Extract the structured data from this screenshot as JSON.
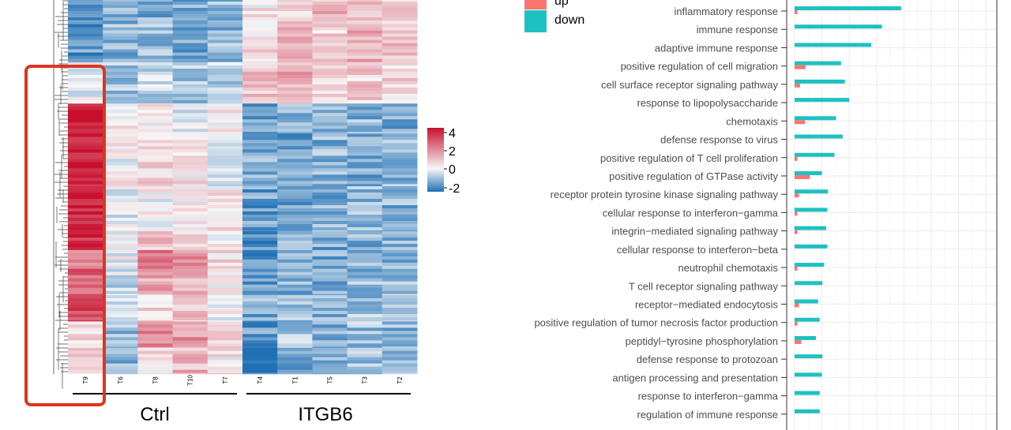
{
  "colors": {
    "up": "#f8766d",
    "down": "#1ec1c1",
    "highlight": "#d9371f",
    "heat_high": "#c8102e",
    "heat_mid": "#f7f7f7",
    "heat_low": "#2070b4"
  },
  "chart_data": [
    {
      "type": "heatmap",
      "samples": [
        "T9",
        "T6",
        "T8",
        "T10",
        "T7",
        "T4",
        "T1",
        "T5",
        "T3",
        "T2"
      ],
      "groups": [
        {
          "label": "Ctrl",
          "samples": [
            "T9",
            "T6",
            "T8",
            "T10",
            "T7"
          ]
        },
        {
          "label": "ITGB6",
          "samples": [
            "T4",
            "T1",
            "T5",
            "T3",
            "T2"
          ]
        }
      ],
      "colorbar": {
        "ticks": [
          "4",
          "2",
          "0",
          "-2"
        ],
        "range": [
          -2.5,
          4.5
        ]
      },
      "highlighted_sample": "T9",
      "blocks": [
        {
          "rows": [
            0.0,
            0.06
          ],
          "values": [
            -1.4,
            -1.0,
            -1.2,
            -1.3,
            -1.1,
            0.3,
            0.6,
            1.1,
            0.9,
            0.5
          ]
        },
        {
          "rows": [
            0.06,
            0.17
          ],
          "values": [
            -1.5,
            -1.1,
            -0.9,
            -1.2,
            -1.0,
            0.5,
            1.0,
            0.6,
            1.2,
            0.9
          ]
        },
        {
          "rows": [
            0.17,
            0.28
          ],
          "values": [
            0.0,
            -0.8,
            -0.6,
            -0.9,
            -0.7,
            0.9,
            1.3,
            0.8,
            0.7,
            0.6
          ]
        },
        {
          "rows": [
            0.28,
            0.36
          ],
          "values": [
            4.0,
            0.3,
            0.2,
            -0.2,
            0.4,
            -1.3,
            -1.2,
            -1.0,
            -1.1,
            -1.2
          ]
        },
        {
          "rows": [
            0.36,
            0.5
          ],
          "values": [
            3.9,
            0.1,
            0.5,
            0.3,
            -0.1,
            -1.2,
            -1.4,
            -1.1,
            -1.2,
            -1.0
          ]
        },
        {
          "rows": [
            0.5,
            0.62
          ],
          "values": [
            3.7,
            -0.2,
            0.1,
            0.2,
            0.3,
            -1.4,
            -1.3,
            -1.2,
            -1.0,
            -1.1
          ]
        },
        {
          "rows": [
            0.62,
            0.67
          ],
          "values": [
            3.5,
            0.2,
            0.9,
            0.4,
            0.1,
            -1.6,
            -1.2,
            -1.3,
            -1.1,
            -1.2
          ]
        },
        {
          "rows": [
            0.67,
            0.72
          ],
          "values": [
            2.2,
            0.0,
            2.0,
            1.6,
            0.5,
            -1.5,
            -1.2,
            -1.3,
            -1.1,
            -1.0
          ]
        },
        {
          "rows": [
            0.72,
            0.79
          ],
          "values": [
            2.6,
            -0.4,
            1.3,
            1.1,
            0.2,
            -1.6,
            -1.1,
            -1.2,
            -1.0,
            -0.9
          ]
        },
        {
          "rows": [
            0.79,
            0.86
          ],
          "values": [
            2.9,
            -0.5,
            0.6,
            0.9,
            0.0,
            -1.2,
            -1.0,
            -1.0,
            -0.9,
            -1.1
          ]
        },
        {
          "rows": [
            0.86,
            0.93
          ],
          "values": [
            0.6,
            -0.9,
            1.9,
            1.7,
            0.8,
            -1.5,
            -0.9,
            -1.1,
            -0.9,
            -1.0
          ]
        },
        {
          "rows": [
            0.93,
            1.0
          ],
          "values": [
            0.8,
            -1.0,
            0.4,
            1.1,
            0.3,
            -2.0,
            -1.3,
            -1.1,
            -1.0,
            -0.9
          ]
        }
      ]
    },
    {
      "type": "bar",
      "orientation": "horizontal",
      "legend": [
        {
          "label": "up",
          "key": "up"
        },
        {
          "label": "down",
          "key": "down"
        }
      ],
      "legend_position": "top-left",
      "categories": [
        "inflammatory response",
        "immune response",
        "adaptive immune response",
        "positive regulation of cell migration",
        "cell surface receptor signaling pathway",
        "response to lipopolysaccharide",
        "chemotaxis",
        "defense response to virus",
        "positive regulation of T cell proliferation",
        "positive regulation of GTPase activity",
        "receptor protein tyrosine kinase signaling pathway",
        "cellular response to interferon−gamma",
        "integrin−mediated signaling pathway",
        "cellular response to interferon−beta",
        "neutrophil chemotaxis",
        "T cell receptor signaling pathway",
        "receptor−mediated endocytosis",
        "positive regulation of tumor necrosis factor production",
        "peptidyl−tyrosine phosphorylation",
        "defense response to protozoan",
        "antigen processing and presentation",
        "response to interferon−gamma",
        "regulation of immune response"
      ],
      "series": [
        {
          "name": "up",
          "values": [
            0.5,
            0,
            0,
            2.0,
            1.0,
            0,
            1.9,
            0,
            0.5,
            2.8,
            0.8,
            0.5,
            0.5,
            0,
            0.5,
            0,
            0.8,
            0.5,
            1.2,
            0,
            0,
            0,
            0
          ]
        },
        {
          "name": "down",
          "values": [
            19.5,
            16.0,
            14.0,
            8.5,
            9.2,
            10.0,
            7.6,
            8.8,
            7.3,
            5.0,
            6.1,
            6.0,
            5.8,
            6.0,
            5.4,
            5.1,
            4.3,
            4.6,
            3.9,
            5.1,
            5.0,
            4.6,
            4.6
          ]
        }
      ],
      "xlim": [
        0,
        37
      ],
      "grid": true
    }
  ]
}
